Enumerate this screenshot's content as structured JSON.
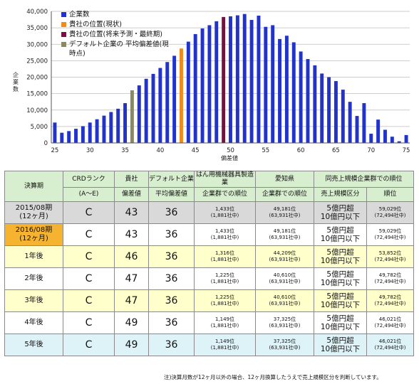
{
  "chart_data": {
    "type": "bar",
    "title": "",
    "xlabel": "偏差値",
    "ylabel": "企業数",
    "ylim": [
      0,
      40000
    ],
    "yticks": [
      "0",
      "5,000",
      "10,000",
      "15,000",
      "20,000",
      "25,000",
      "30,000",
      "35,000",
      "40,000"
    ],
    "xticks": [
      "25",
      "30",
      "35",
      "40",
      "45",
      "50",
      "55",
      "60",
      "65",
      "70",
      "75"
    ],
    "grid": true,
    "legend_position": "top-left",
    "x": [
      25,
      26,
      27,
      28,
      29,
      30,
      31,
      32,
      33,
      34,
      35,
      36,
      37,
      38,
      39,
      40,
      41,
      42,
      43,
      44,
      45,
      46,
      47,
      48,
      49,
      50,
      51,
      52,
      53,
      54,
      55,
      56,
      57,
      58,
      59,
      60,
      61,
      62,
      63,
      64,
      65,
      66,
      67,
      68,
      69,
      70,
      71,
      72,
      73,
      74,
      75
    ],
    "values": [
      6200,
      3100,
      3600,
      4300,
      5100,
      6200,
      7200,
      8300,
      9400,
      10400,
      12100,
      16000,
      17500,
      19500,
      21000,
      22800,
      24600,
      26500,
      28700,
      30800,
      33100,
      34800,
      35800,
      37000,
      38300,
      38500,
      38800,
      39200,
      37400,
      38700,
      35300,
      35800,
      31600,
      32600,
      30600,
      27800,
      25500,
      23600,
      21100,
      20000,
      18800,
      16200,
      12500,
      8200,
      12100,
      2800,
      7100,
      4000,
      1900,
      500,
      2400
    ],
    "colors": {
      "default": "#2233cc",
      "current": "#f08a1c",
      "forecast": "#7a1040",
      "industry_average": "#8a8a60"
    },
    "highlights": [
      {
        "x": 36,
        "series": "industry_average"
      },
      {
        "x": 43,
        "series": "current"
      },
      {
        "x": 49,
        "series": "forecast"
      }
    ],
    "legend": [
      {
        "key": "default",
        "label": "企業数"
      },
      {
        "key": "current",
        "label": "貴社の位置(現状)"
      },
      {
        "key": "forecast",
        "label": "貴社の位置(将来予測・最終期)"
      },
      {
        "key": "industry_average",
        "label": "デフォルト企業の 平均偏差値(現時点)"
      }
    ]
  },
  "table": {
    "headers": {
      "period": "決算期",
      "crd_rank": "CRDランク",
      "crd_range": "(A〜E)",
      "company": "貴社",
      "company_sub": "偏差値",
      "default_avg": "デフォルト企業",
      "default_avg_sub": "平均偏差値",
      "industry": "はん用機械器具製造業",
      "industry_sub": "企業群での順位",
      "prefecture": "愛知県",
      "prefecture_sub": "企業群での順位",
      "same_scale": "同売上規模企業群での順位",
      "sales_band": "売上規模区分",
      "rank": "順位"
    },
    "rows": [
      {
        "period": "2015/08期",
        "months": "(12ヶ月)",
        "crd": "C",
        "score": "43",
        "default_avg": "36",
        "ind_rank": "1,433位",
        "ind_total": "(1,881社中)",
        "pref_rank": "49,181位",
        "pref_total": "(63,931社中)",
        "band1": "5億円超",
        "band2": "10億円以下",
        "scale_rank": "59,029位",
        "scale_total": "(72,494社中)"
      },
      {
        "period": "2016/08期",
        "months": "(12ヶ月)",
        "crd": "C",
        "score": "43",
        "default_avg": "36",
        "ind_rank": "1,433位",
        "ind_total": "(1,881社中)",
        "pref_rank": "49,181位",
        "pref_total": "(63,931社中)",
        "band1": "5億円超",
        "band2": "10億円以下",
        "scale_rank": "59,029位",
        "scale_total": "(72,494社中)"
      },
      {
        "period": "1年後",
        "months": "",
        "crd": "C",
        "score": "46",
        "default_avg": "36",
        "ind_rank": "1,316位",
        "ind_total": "(1,881社中)",
        "pref_rank": "44,209位",
        "pref_total": "(63,931社中)",
        "band1": "5億円超",
        "band2": "10億円以下",
        "scale_rank": "53,852位",
        "scale_total": "(72,494社中)"
      },
      {
        "period": "2年後",
        "months": "",
        "crd": "C",
        "score": "47",
        "default_avg": "36",
        "ind_rank": "1,225位",
        "ind_total": "(1,881社中)",
        "pref_rank": "40,610位",
        "pref_total": "(63,931社中)",
        "band1": "5億円超",
        "band2": "10億円以下",
        "scale_rank": "49,782位",
        "scale_total": "(72,494社中)"
      },
      {
        "period": "3年後",
        "months": "",
        "crd": "C",
        "score": "47",
        "default_avg": "36",
        "ind_rank": "1,225位",
        "ind_total": "(1,881社中)",
        "pref_rank": "40,610位",
        "pref_total": "(63,931社中)",
        "band1": "5億円超",
        "band2": "10億円以下",
        "scale_rank": "49,782位",
        "scale_total": "(72,494社中)"
      },
      {
        "period": "4年後",
        "months": "",
        "crd": "C",
        "score": "49",
        "default_avg": "36",
        "ind_rank": "1,149位",
        "ind_total": "(1,881社中)",
        "pref_rank": "37,325位",
        "pref_total": "(63,931社中)",
        "band1": "5億円超",
        "band2": "10億円以下",
        "scale_rank": "46,021位",
        "scale_total": "(72,494社中)"
      },
      {
        "period": "5年後",
        "months": "",
        "crd": "C",
        "score": "49",
        "default_avg": "36",
        "ind_rank": "1,149位",
        "ind_total": "(1,881社中)",
        "pref_rank": "37,325位",
        "pref_total": "(63,931社中)",
        "band1": "5億円超",
        "band2": "10億円以下",
        "scale_rank": "46,021位",
        "scale_total": "(72,494社中)"
      }
    ],
    "row_colors": {
      "gray": "#d9d9d9",
      "orange": "#f5b330",
      "yellow": "#ffffcc",
      "white": "#ffffff",
      "cyan": "#def3f8"
    },
    "note": "注)決算月数が12ヶ月以外の場合、12ヶ月換算したうえで売上規模区分を判断しています。"
  }
}
